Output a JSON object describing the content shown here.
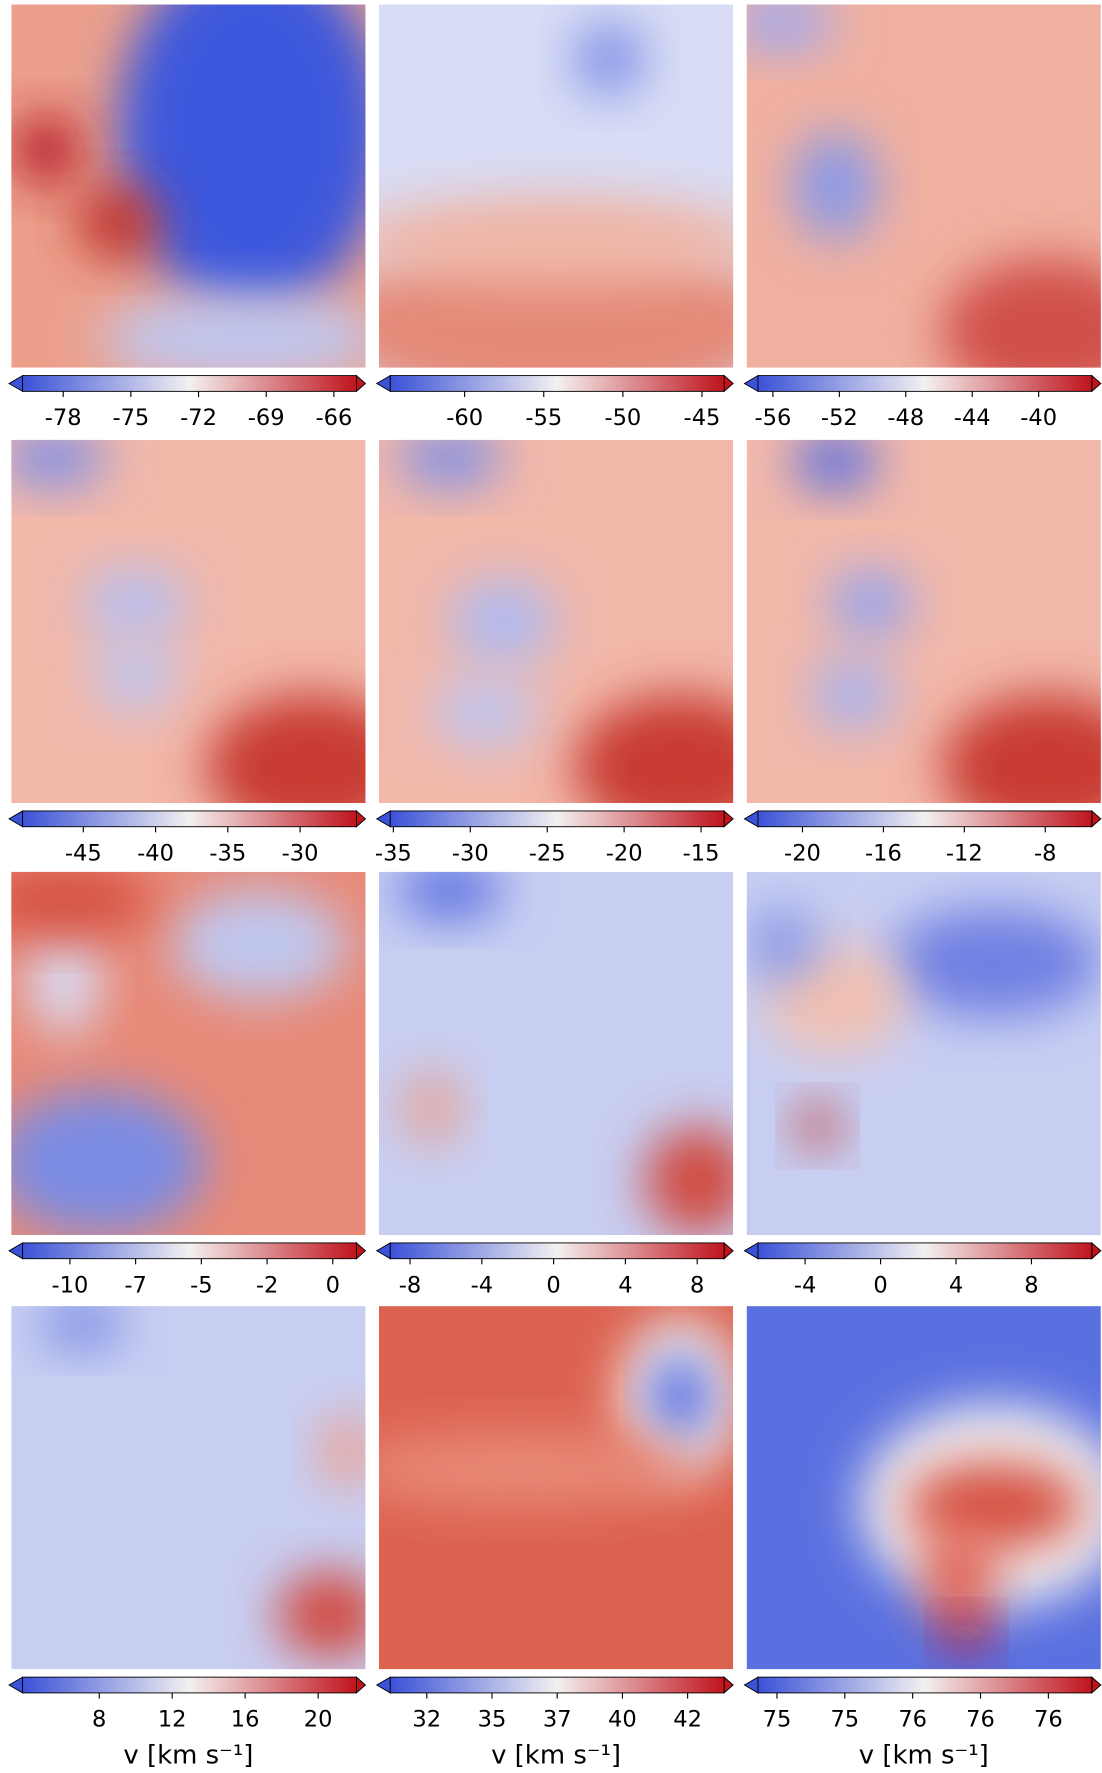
{
  "chart_data": [
    {
      "type": "heatmap",
      "clim": [
        -79.8,
        -65
      ],
      "cticks": [
        -78,
        -75,
        -72,
        -69,
        -66
      ]
    },
    {
      "type": "heatmap",
      "clim": [
        -64.7,
        -43.6
      ],
      "cticks": [
        -60,
        -55,
        -50,
        -45
      ]
    },
    {
      "type": "heatmap",
      "clim": [
        -56.9,
        -36.8
      ],
      "cticks": [
        -56,
        -52,
        -48,
        -44,
        -40
      ]
    },
    {
      "type": "heatmap",
      "clim": [
        -49.2,
        -26.1
      ],
      "cticks": [
        -45,
        -40,
        -35,
        -30
      ]
    },
    {
      "type": "heatmap",
      "clim": [
        -35.2,
        -13.5
      ],
      "cticks": [
        -35,
        -30,
        -25,
        -20,
        -15
      ]
    },
    {
      "type": "heatmap",
      "clim": [
        -22.2,
        -5.7
      ],
      "cticks": [
        -20,
        -16,
        -12,
        -8
      ]
    },
    {
      "type": "heatmap",
      "clim": [
        -11.8,
        0.9
      ],
      "cticks": [
        -10,
        {
          "value": -7.5,
          "label": "-7"
        },
        -5,
        {
          "value": -2.5,
          "label": "-2"
        },
        0
      ]
    },
    {
      "type": "heatmap",
      "clim": [
        -9.1,
        9.5
      ],
      "cticks": [
        -8,
        -4,
        0,
        4,
        8
      ]
    },
    {
      "type": "heatmap",
      "clim": [
        -6.5,
        11.2
      ],
      "cticks": [
        -4,
        0,
        4,
        8
      ]
    },
    {
      "type": "heatmap",
      "clim": [
        3.8,
        22.1
      ],
      "cticks": [
        8,
        12,
        16,
        20
      ],
      "xlabel": "v [km s⁻¹]"
    },
    {
      "type": "heatmap",
      "clim": [
        31.1,
        43.9
      ],
      "cticks": [
        {
          "value": 32.5,
          "label": "32"
        },
        35,
        {
          "value": 37.5,
          "label": "37"
        },
        40,
        {
          "value": 42.5,
          "label": "42"
        }
      ],
      "xlabel": "v [km s⁻¹]"
    },
    {
      "type": "heatmap",
      "clim": [
        74.93,
        76.16
      ],
      "cticks": [
        {
          "value": 75,
          "label": "75"
        },
        {
          "value": 75.25,
          "label": "75"
        },
        {
          "value": 75.5,
          "label": "76"
        },
        {
          "value": 75.75,
          "label": "76"
        },
        {
          "value": 76,
          "label": "76"
        }
      ],
      "xlabel": "v [km s⁻¹]"
    }
  ]
}
